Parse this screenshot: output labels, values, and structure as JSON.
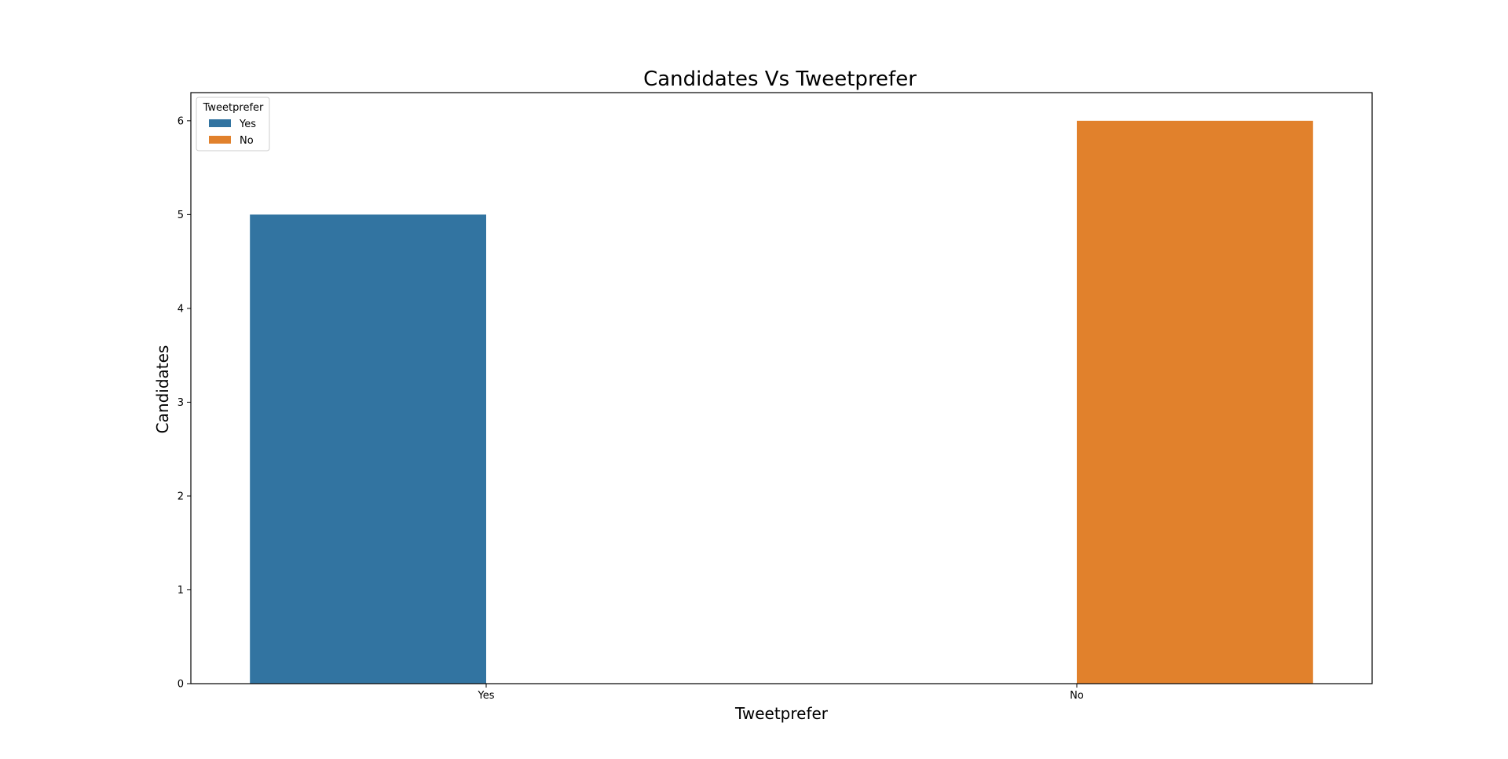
{
  "chart_data": {
    "type": "bar",
    "title": "Candidates Vs Tweetprefer",
    "xlabel": "Tweetprefer",
    "ylabel": "Candidates",
    "categories": [
      "Yes",
      "No"
    ],
    "series": [
      {
        "name": "Yes",
        "values": [
          5,
          0
        ],
        "color": "#3274a1"
      },
      {
        "name": "No",
        "values": [
          0,
          6
        ],
        "color": "#e1812c"
      }
    ],
    "ylim": [
      0,
      6.3
    ],
    "yticks": [
      0,
      1,
      2,
      3,
      4,
      5,
      6
    ],
    "grid": false,
    "legend": {
      "title": "Tweetprefer",
      "placement": "upper-left",
      "entries": [
        "Yes",
        "No"
      ]
    }
  }
}
